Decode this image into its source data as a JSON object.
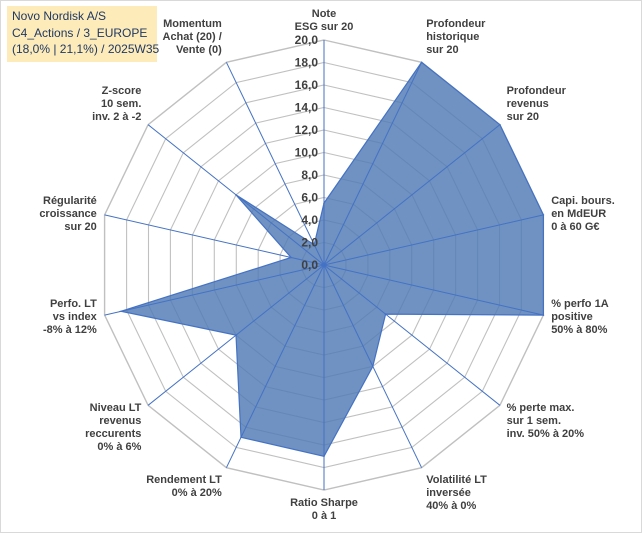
{
  "title": {
    "line1": "Novo Nordisk A/S",
    "line2": "C4_Actions / 3_EUROPE",
    "line3": "(18,0% | 21,1%) / 2025W35"
  },
  "chart_data": {
    "type": "radar",
    "rlim": [
      0,
      20
    ],
    "tick_step": 2,
    "tick_labels": [
      "0,0",
      "2,0",
      "4,0",
      "6,0",
      "8,0",
      "10,0",
      "12,0",
      "14,0",
      "16,0",
      "18,0",
      "20,0"
    ],
    "grid": true,
    "categories": [
      "Note ESG sur 20",
      "Profondeur historique sur 20",
      "Profondeur revenus sur 20",
      "Capi. bours. en MdEUR 0 à 60 G€",
      "% perfo 1A positive 50% à 80%",
      "% perte max. sur 1 sem. inv. 50% à 20%",
      "Volatilité LT inversée 40% à 0%",
      "Ratio Sharpe 0 à 1",
      "Rendement LT 0% à 20%",
      "Niveau LT revenus reccurents 0% à 6%",
      "Perfo. LT vs index -8% à 12%",
      "Régularité croissance sur 20",
      "Z-score 10 sem. inv. 2 à -2",
      "Momentum Achat (20) / Vente (0)"
    ],
    "axis_label_lines": [
      [
        "Note",
        "ESG sur 20"
      ],
      [
        "Profondeur",
        "historique",
        "sur 20"
      ],
      [
        "Profondeur",
        "revenus",
        "sur 20"
      ],
      [
        "Capi. bours.",
        "en MdEUR",
        "0 à 60 G€"
      ],
      [
        "% perfo 1A",
        "positive",
        "50% à 80%"
      ],
      [
        "% perte max.",
        "sur 1 sem.",
        "inv. 50% à 20%"
      ],
      [
        "Volatilité LT",
        "inversée",
        "40% à 0%"
      ],
      [
        "Ratio Sharpe",
        "0 à 1"
      ],
      [
        "Rendement LT",
        "0% à 20%"
      ],
      [
        "Niveau LT",
        "revenus",
        "reccurents",
        "0% à 6%"
      ],
      [
        "Perfo. LT",
        "vs index",
        "-8% à 12%"
      ],
      [
        "Régularité",
        "croissance",
        "sur 20"
      ],
      [
        "Z-score",
        "10 sem.",
        "inv. 2 à -2"
      ],
      [
        "Momentum",
        "Achat (20) /",
        "Vente (0)"
      ]
    ],
    "series": [
      {
        "values": [
          5.5,
          20,
          20,
          20,
          20,
          7,
          10,
          17,
          17,
          10,
          18.5,
          3,
          10,
          2
        ],
        "color": "#4f7ab5",
        "fill_opacity": 0.82
      }
    ],
    "grid_color": "#c0c0c0",
    "axis_color": "#4472c4"
  }
}
